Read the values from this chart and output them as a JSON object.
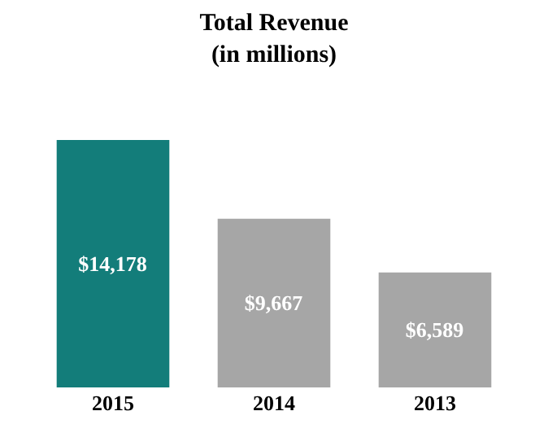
{
  "chart_data": {
    "type": "bar",
    "title": "Total Revenue\n(in millions)",
    "categories": [
      "2015",
      "2014",
      "2013"
    ],
    "values": [
      14178,
      9667,
      6589
    ],
    "value_labels": [
      "$14,178",
      "$9,667",
      "$6,589"
    ],
    "colors": [
      "#137d7a",
      "#a6a6a6",
      "#a6a6a6"
    ]
  }
}
